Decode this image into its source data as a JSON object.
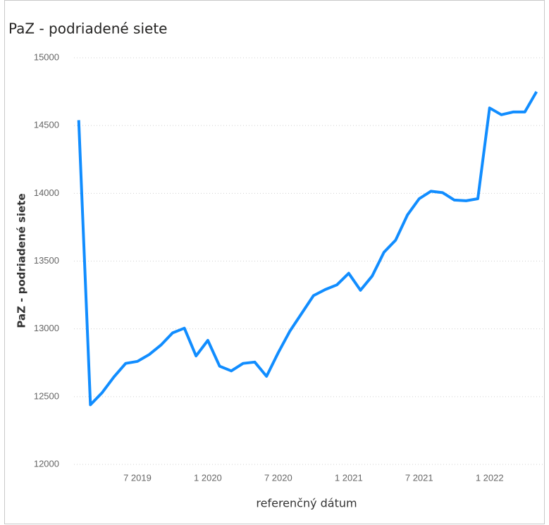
{
  "chart_data": {
    "type": "line",
    "title": "PaZ - podriadené siete",
    "xlabel": "referenčný dátum",
    "ylabel": "PaZ - podriadené siete",
    "x": [
      "2019-02",
      "2019-03",
      "2019-04",
      "2019-05",
      "2019-06",
      "2019-07",
      "2019-08",
      "2019-09",
      "2019-10",
      "2019-11",
      "2019-12",
      "2020-01",
      "2020-02",
      "2020-03",
      "2020-04",
      "2020-05",
      "2020-06",
      "2020-07",
      "2020-08",
      "2020-09",
      "2020-10",
      "2020-11",
      "2020-12",
      "2021-01",
      "2021-02",
      "2021-03",
      "2021-04",
      "2021-05",
      "2021-06",
      "2021-07",
      "2021-08",
      "2021-09",
      "2021-10",
      "2021-11",
      "2021-12",
      "2022-01",
      "2022-02",
      "2022-03",
      "2022-04",
      "2022-05"
    ],
    "series": [
      {
        "name": "PaZ - podriadené siete",
        "color": "#118dff",
        "values": [
          14540,
          12440,
          12530,
          12645,
          12745,
          12760,
          12810,
          12880,
          12970,
          13005,
          12800,
          12915,
          12725,
          12690,
          12745,
          12755,
          12650,
          12825,
          12985,
          13115,
          13245,
          13290,
          13325,
          13410,
          13285,
          13390,
          13565,
          13655,
          13840,
          13960,
          14015,
          14005,
          13950,
          13945,
          13960,
          14630,
          14580,
          14600,
          14600,
          14750
        ]
      }
    ],
    "xlim": [
      "2019-01",
      "2022-06"
    ],
    "xticks": [
      {
        "value": "2019-07",
        "label": "7 2019"
      },
      {
        "value": "2020-01",
        "label": "1 2020"
      },
      {
        "value": "2020-07",
        "label": "7 2020"
      },
      {
        "value": "2021-01",
        "label": "1 2021"
      },
      {
        "value": "2021-07",
        "label": "7 2021"
      },
      {
        "value": "2022-01",
        "label": "1 2022"
      }
    ],
    "ylim": [
      12000,
      15000
    ],
    "yticks": [
      12000,
      12500,
      13000,
      13500,
      14000,
      14500,
      15000
    ],
    "grid": true
  }
}
